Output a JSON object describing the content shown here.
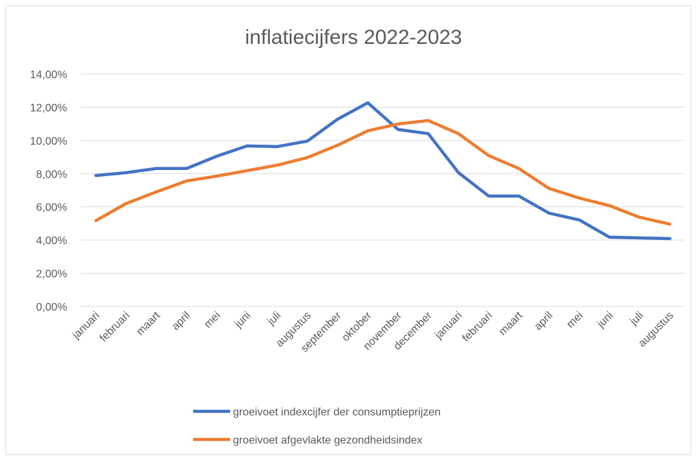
{
  "chart_data": {
    "type": "line",
    "title": "inflatiecijfers 2022-2023",
    "categories": [
      "januari",
      "februari",
      "maart",
      "april",
      "mei",
      "juni",
      "juli",
      "augustus",
      "september",
      "oktober",
      "november",
      "december",
      "januari",
      "februari",
      "maart",
      "april",
      "mei",
      "juni",
      "juli",
      "augustus"
    ],
    "series": [
      {
        "name": "groeivoet indexcijfer der consumptieprijzen",
        "color": "#4472c4",
        "values": [
          7.89,
          8.06,
          8.31,
          8.31,
          9.05,
          9.67,
          9.63,
          9.96,
          11.28,
          12.27,
          10.66,
          10.41,
          8.06,
          6.65,
          6.65,
          5.62,
          5.21,
          4.17,
          4.13,
          4.09
        ]
      },
      {
        "name": "groeivoet afgevlakte gezondheidsindex",
        "color": "#ed7d31",
        "values": [
          5.17,
          6.2,
          6.9,
          7.56,
          7.85,
          8.18,
          8.51,
          8.97,
          9.71,
          10.58,
          10.99,
          11.2,
          10.41,
          9.09,
          8.31,
          7.11,
          6.53,
          6.07,
          5.37,
          4.96
        ]
      }
    ],
    "ylim": [
      0,
      14
    ],
    "yticks": [
      {
        "value": 0,
        "label": "0,00%"
      },
      {
        "value": 2,
        "label": "2,00%"
      },
      {
        "value": 4,
        "label": "4,00%"
      },
      {
        "value": 6,
        "label": "6,00%"
      },
      {
        "value": 8,
        "label": "8,00%"
      },
      {
        "value": 10,
        "label": "10,00%"
      },
      {
        "value": 12,
        "label": "12,00%"
      },
      {
        "value": 14,
        "label": "14,00%"
      }
    ],
    "grid": true,
    "legend": "bottom"
  }
}
